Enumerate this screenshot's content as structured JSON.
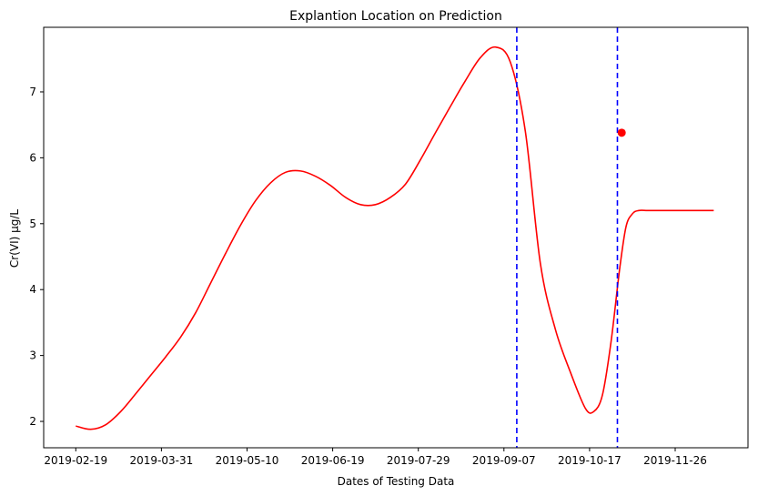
{
  "chart_data": {
    "type": "line",
    "title": "Explantion Location on Prediction",
    "xlabel": "Dates of Testing Data",
    "ylabel": "Cr(VI) µg/L",
    "x_axis_type": "date",
    "xlim": [
      "2019-02-04",
      "2019-12-30"
    ],
    "ylim": [
      1.6,
      7.98
    ],
    "x_ticks": [
      "2019-02-19",
      "2019-03-31",
      "2019-05-10",
      "2019-06-19",
      "2019-07-29",
      "2019-09-07",
      "2019-10-17",
      "2019-11-26",
      "2020-01-05"
    ],
    "x_tick_labels": [
      "2019-02-19",
      "2019-03-31",
      "2019-05-10",
      "2019-06-19",
      "2019-07-29",
      "2019-09-07",
      "2019-10-17",
      "2019-11-26",
      ""
    ],
    "y_ticks": [
      2,
      3,
      4,
      5,
      6,
      7
    ],
    "y_tick_labels": [
      "2",
      "3",
      "4",
      "5",
      "6",
      "7"
    ],
    "grid": false,
    "series": [
      {
        "color": "#ff0000",
        "x": [
          "2019-02-19",
          "2019-02-26",
          "2019-03-05",
          "2019-03-12",
          "2019-03-19",
          "2019-03-26",
          "2019-04-02",
          "2019-04-09",
          "2019-04-16",
          "2019-04-23",
          "2019-04-30",
          "2019-05-07",
          "2019-05-14",
          "2019-05-21",
          "2019-05-28",
          "2019-06-04",
          "2019-06-11",
          "2019-06-18",
          "2019-06-25",
          "2019-07-02",
          "2019-07-09",
          "2019-07-16",
          "2019-07-23",
          "2019-07-30",
          "2019-08-06",
          "2019-08-13",
          "2019-08-20",
          "2019-08-27",
          "2019-09-03",
          "2019-09-10",
          "2019-09-17",
          "2019-09-24",
          "2019-10-01",
          "2019-10-08",
          "2019-10-15",
          "2019-10-19",
          "2019-10-23",
          "2019-10-27",
          "2019-10-31",
          "2019-11-03",
          "2019-11-06",
          "2019-11-09",
          "2019-11-13",
          "2019-11-18",
          "2019-11-22",
          "2019-11-25",
          "2019-11-28",
          "2019-12-01",
          "2019-12-04",
          "2019-12-07",
          "2019-12-10",
          "2019-12-14"
        ],
        "y": [
          1.93,
          1.88,
          1.95,
          2.15,
          2.42,
          2.7,
          2.98,
          3.28,
          3.65,
          4.1,
          4.55,
          4.98,
          5.35,
          5.62,
          5.78,
          5.8,
          5.72,
          5.58,
          5.4,
          5.29,
          5.29,
          5.4,
          5.6,
          5.97,
          6.38,
          6.78,
          7.17,
          7.52,
          7.68,
          7.45,
          6.4,
          4.4,
          3.4,
          2.75,
          2.2,
          2.15,
          2.4,
          3.2,
          4.3,
          4.95,
          5.15,
          5.2,
          5.2,
          5.2,
          5.2,
          5.2,
          5.2,
          5.2,
          5.2,
          5.2,
          5.2,
          5.2
        ]
      }
    ],
    "vlines": [
      {
        "x": "2019-09-13",
        "color": "#0000ff",
        "style": "dashed"
      },
      {
        "x": "2019-10-30",
        "color": "#0000ff",
        "style": "dashed"
      }
    ],
    "marker": {
      "x": "2019-11-01",
      "y": 6.38,
      "color": "#ff0000"
    }
  }
}
